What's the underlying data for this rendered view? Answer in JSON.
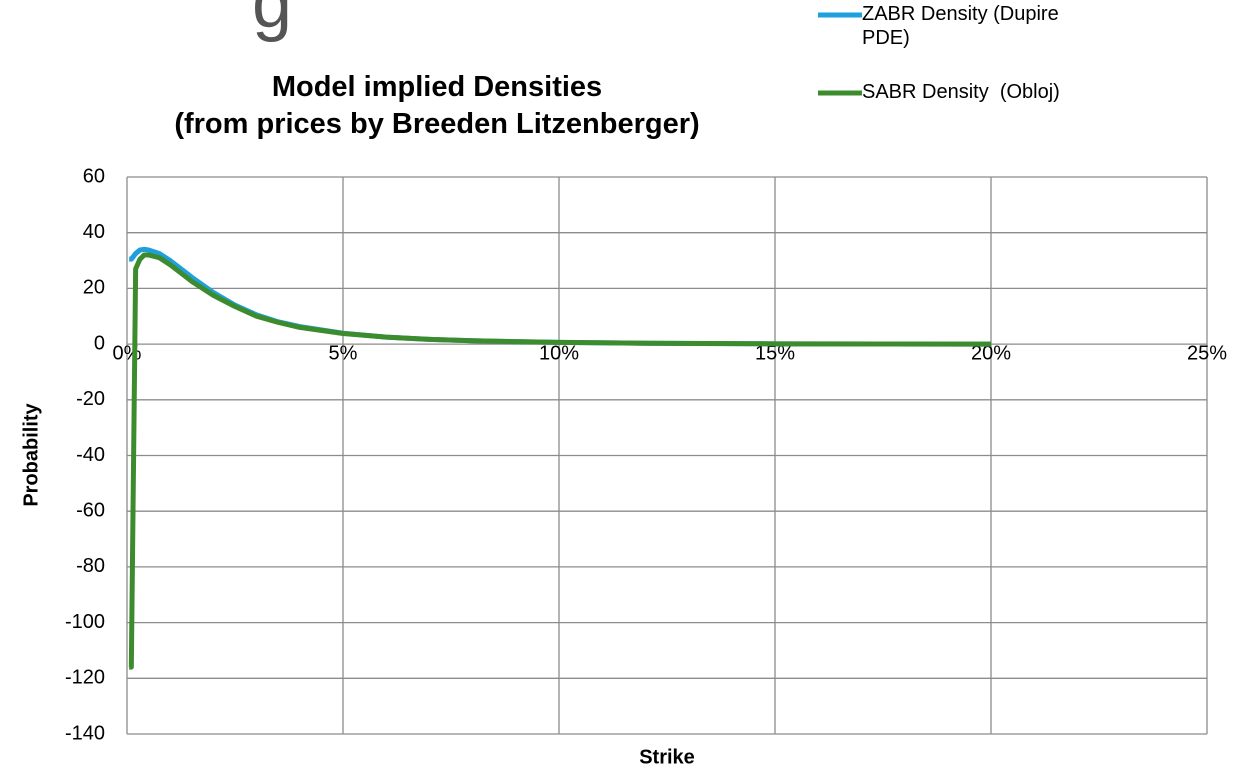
{
  "slide_title_fragment": "g",
  "chart_data": {
    "type": "line",
    "title": "Model implied Densities (from prices by Breeden Litzenberger)",
    "x_label": "Strike",
    "y_label": "Probability",
    "x": [
      0.05,
      0.1,
      0.2,
      0.3,
      0.4,
      0.5,
      0.75,
      1,
      1.25,
      1.5,
      2,
      2.5,
      3,
      3.5,
      4,
      5,
      6,
      7,
      8,
      10,
      12,
      15,
      17.5,
      20
    ],
    "series": [
      {
        "name": "ZABR Density (Dupire PDE)",
        "color": "#1f9fdc",
        "values": [
          30.5,
          30.5,
          32.5,
          33.8,
          34,
          33.8,
          32.5,
          30,
          27,
          24,
          18.5,
          14,
          10.5,
          8,
          6.3,
          3.9,
          2.5,
          1.7,
          1.2,
          0.6,
          0.3,
          0.1,
          0.05,
          0
        ]
      },
      {
        "name": "SABR Density  (Obloj)",
        "color": "#3c8c2e",
        "values": [
          -116,
          -116,
          27,
          30.5,
          32,
          32,
          31,
          28.5,
          25.5,
          22.5,
          17.5,
          13.5,
          10,
          7.8,
          6,
          3.8,
          2.5,
          1.7,
          1.2,
          0.6,
          0.3,
          0.1,
          0.05,
          0
        ]
      }
    ],
    "xlim": [
      0,
      25
    ],
    "xticks": [
      {
        "value": 0,
        "label": "0%"
      },
      {
        "value": 5,
        "label": "5%"
      },
      {
        "value": 10,
        "label": "10%"
      },
      {
        "value": 15,
        "label": "15%"
      },
      {
        "value": 20,
        "label": "20%"
      },
      {
        "value": 25,
        "label": "25%"
      }
    ],
    "ylim": [
      -140,
      60
    ],
    "yticks": [
      -140,
      -120,
      -100,
      -80,
      -60,
      -40,
      -20,
      0,
      20,
      40,
      60
    ],
    "grid": true,
    "legend": "top-right"
  }
}
